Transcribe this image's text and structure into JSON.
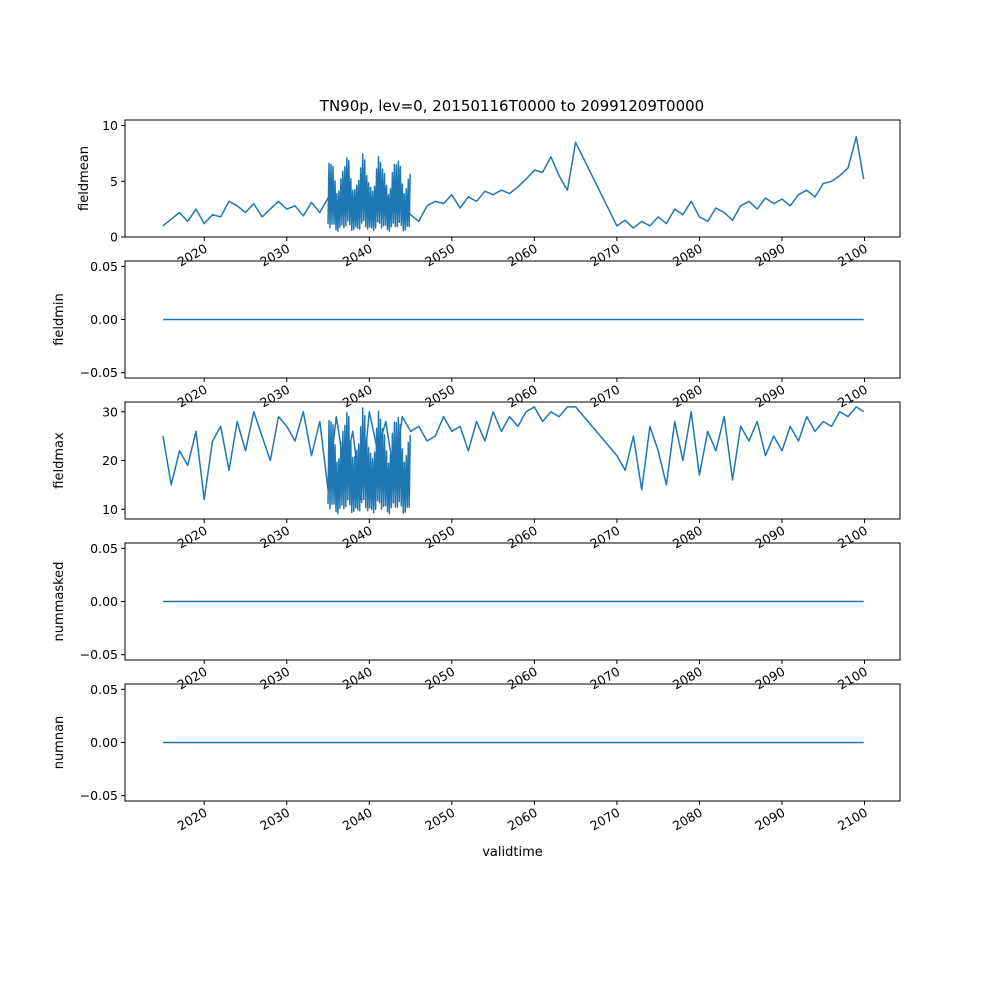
{
  "figure_title": "TN90p, lev=0, 20150116T0000 to 20991209T0000",
  "colors": {
    "series": "#1f77b4"
  },
  "chart_data": [
    {
      "type": "line",
      "ylabel": "fieldmean",
      "xlabel": "",
      "xlim": [
        2010.4,
        2104.3
      ],
      "ylim": [
        0,
        10.5
      ],
      "yticks": [
        0,
        5,
        10
      ],
      "ytick_labels": [
        "0",
        "5",
        "10"
      ],
      "xticks": [
        2020,
        2030,
        2040,
        2050,
        2060,
        2070,
        2080,
        2090,
        2100
      ],
      "xtick_labels": [
        "2020",
        "2030",
        "2040",
        "2050",
        "2060",
        "2070",
        "2080",
        "2090",
        "2100"
      ],
      "grid": false,
      "series": [
        {
          "x": [
            2015.0,
            2016.0,
            2017.0,
            2018.0,
            2019.0,
            2020.0,
            2021.0,
            2022.0,
            2023.0,
            2024.0,
            2025.0,
            2026.0,
            2027.0,
            2028.0,
            2029.0,
            2030.0,
            2031.0,
            2032.0,
            2033.0,
            2034.0,
            2035.0,
            2036.0,
            2037.0,
            2038.0,
            2039.0,
            2040.0,
            2041.0,
            2042.0,
            2043.0,
            2044.0,
            2045.0,
            2046.0,
            2047.0,
            2048.0,
            2049.0,
            2050.0,
            2051.0,
            2052.0,
            2053.0,
            2054.0,
            2055.0,
            2056.0,
            2057.0,
            2058.0,
            2059.0,
            2060.0,
            2061.0,
            2062.0,
            2063.0,
            2064.0,
            2065.0,
            2070.0,
            2071.0,
            2072.0,
            2073.0,
            2074.0,
            2075.0,
            2076.0,
            2077.0,
            2078.0,
            2079.0,
            2080.0,
            2081.0,
            2082.0,
            2083.0,
            2084.0,
            2085.0,
            2086.0,
            2087.0,
            2088.0,
            2089.0,
            2090.0,
            2091.0,
            2092.0,
            2093.0,
            2094.0,
            2095.0,
            2096.0,
            2097.0,
            2098.0,
            2099.0,
            2099.9
          ],
          "y": [
            1.0,
            1.6,
            2.2,
            1.4,
            2.5,
            1.2,
            2.0,
            1.8,
            3.2,
            2.8,
            2.2,
            3.0,
            1.8,
            2.5,
            3.2,
            2.5,
            2.8,
            1.9,
            3.1,
            2.2,
            3.5,
            2.8,
            4.0,
            3.2,
            2.5,
            3.6,
            2.9,
            3.8,
            2.6,
            3.2,
            2.0,
            1.4,
            2.8,
            3.2,
            3.0,
            3.8,
            2.6,
            3.6,
            3.2,
            4.1,
            3.8,
            4.2,
            3.9,
            4.5,
            5.2,
            6.0,
            5.8,
            7.2,
            5.5,
            4.2,
            8.5,
            1.0,
            1.5,
            0.8,
            1.4,
            1.0,
            1.8,
            1.2,
            2.5,
            2.0,
            3.2,
            1.8,
            1.4,
            2.6,
            2.2,
            1.5,
            2.8,
            3.2,
            2.5,
            3.5,
            3.0,
            3.4,
            2.8,
            3.8,
            4.2,
            3.6,
            4.8,
            5.0,
            5.5,
            6.2,
            9.0,
            5.2
          ]
        }
      ],
      "bands": [
        {
          "x_start": 2035.0,
          "x_end": 2045.0,
          "y_min": 0.5,
          "y_max": 7.5
        }
      ]
    },
    {
      "type": "line",
      "ylabel": "fieldmin",
      "xlabel": "",
      "xlim": [
        2010.4,
        2104.3
      ],
      "ylim": [
        -0.055,
        0.055
      ],
      "yticks": [
        -0.05,
        0.0,
        0.05
      ],
      "ytick_labels": [
        "−0.05",
        "0.00",
        "0.05"
      ],
      "xticks": [
        2020,
        2030,
        2040,
        2050,
        2060,
        2070,
        2080,
        2090,
        2100
      ],
      "xtick_labels": [
        "2020",
        "2030",
        "2040",
        "2050",
        "2060",
        "2070",
        "2080",
        "2090",
        "2100"
      ],
      "grid": false,
      "series": [
        {
          "x": [
            2015.0,
            2099.9
          ],
          "y": [
            0,
            0
          ]
        }
      ],
      "bands": []
    },
    {
      "type": "line",
      "ylabel": "fieldmax",
      "xlabel": "",
      "xlim": [
        2010.4,
        2104.3
      ],
      "ylim": [
        8,
        32
      ],
      "yticks": [
        10,
        20,
        30
      ],
      "ytick_labels": [
        "10",
        "20",
        "30"
      ],
      "xticks": [
        2020,
        2030,
        2040,
        2050,
        2060,
        2070,
        2080,
        2090,
        2100
      ],
      "xtick_labels": [
        "2020",
        "2030",
        "2040",
        "2050",
        "2060",
        "2070",
        "2080",
        "2090",
        "2100"
      ],
      "grid": false,
      "series": [
        {
          "x": [
            2015.0,
            2016.0,
            2017.0,
            2018.0,
            2019.0,
            2020.0,
            2021.0,
            2022.0,
            2023.0,
            2024.0,
            2025.0,
            2026.0,
            2027.0,
            2028.0,
            2029.0,
            2030.0,
            2031.0,
            2032.0,
            2033.0,
            2034.0,
            2035.0,
            2036.0,
            2037.0,
            2038.0,
            2039.0,
            2040.0,
            2041.0,
            2042.0,
            2043.0,
            2044.0,
            2045.0,
            2046.0,
            2047.0,
            2048.0,
            2049.0,
            2050.0,
            2051.0,
            2052.0,
            2053.0,
            2054.0,
            2055.0,
            2056.0,
            2057.0,
            2058.0,
            2059.0,
            2060.0,
            2061.0,
            2062.0,
            2063.0,
            2064.0,
            2065.0,
            2070.0,
            2071.0,
            2072.0,
            2073.0,
            2074.0,
            2075.0,
            2076.0,
            2077.0,
            2078.0,
            2079.0,
            2080.0,
            2081.0,
            2082.0,
            2083.0,
            2084.0,
            2085.0,
            2086.0,
            2087.0,
            2088.0,
            2089.0,
            2090.0,
            2091.0,
            2092.0,
            2093.0,
            2094.0,
            2095.0,
            2096.0,
            2097.0,
            2098.0,
            2099.0,
            2099.9
          ],
          "y": [
            25,
            15,
            22,
            19,
            26,
            12,
            24,
            27,
            18,
            28,
            22,
            30,
            25,
            20,
            29,
            27,
            24,
            30,
            21,
            28,
            14,
            29,
            18,
            26,
            12,
            30,
            22,
            28,
            17,
            29,
            26,
            27,
            24,
            25,
            29,
            26,
            27,
            22,
            28,
            24,
            30,
            26,
            29,
            27,
            30,
            31,
            28,
            30,
            29,
            31,
            31,
            21,
            18,
            25,
            14,
            27,
            22,
            15,
            28,
            20,
            30,
            17,
            26,
            22,
            29,
            16,
            27,
            24,
            28,
            21,
            25,
            22,
            27,
            24,
            29,
            26,
            28,
            27,
            30,
            29,
            31,
            30
          ]
        }
      ],
      "bands": [
        {
          "x_start": 2035.0,
          "x_end": 2045.0,
          "y_min": 9,
          "y_max": 31
        }
      ]
    },
    {
      "type": "line",
      "ylabel": "nummasked",
      "xlabel": "",
      "xlim": [
        2010.4,
        2104.3
      ],
      "ylim": [
        -0.055,
        0.055
      ],
      "yticks": [
        -0.05,
        0.0,
        0.05
      ],
      "ytick_labels": [
        "−0.05",
        "0.00",
        "0.05"
      ],
      "xticks": [
        2020,
        2030,
        2040,
        2050,
        2060,
        2070,
        2080,
        2090,
        2100
      ],
      "xtick_labels": [
        "2020",
        "2030",
        "2040",
        "2050",
        "2060",
        "2070",
        "2080",
        "2090",
        "2100"
      ],
      "grid": false,
      "series": [
        {
          "x": [
            2015.0,
            2099.9
          ],
          "y": [
            0,
            0
          ]
        }
      ],
      "bands": []
    },
    {
      "type": "line",
      "ylabel": "numnan",
      "xlabel": "validtime",
      "xlim": [
        2010.4,
        2104.3
      ],
      "ylim": [
        -0.055,
        0.055
      ],
      "yticks": [
        -0.05,
        0.0,
        0.05
      ],
      "ytick_labels": [
        "−0.05",
        "0.00",
        "0.05"
      ],
      "xticks": [
        2020,
        2030,
        2040,
        2050,
        2060,
        2070,
        2080,
        2090,
        2100
      ],
      "xtick_labels": [
        "2020",
        "2030",
        "2040",
        "2050",
        "2060",
        "2070",
        "2080",
        "2090",
        "2100"
      ],
      "grid": false,
      "series": [
        {
          "x": [
            2015.0,
            2099.9
          ],
          "y": [
            0,
            0
          ]
        }
      ],
      "bands": []
    }
  ]
}
